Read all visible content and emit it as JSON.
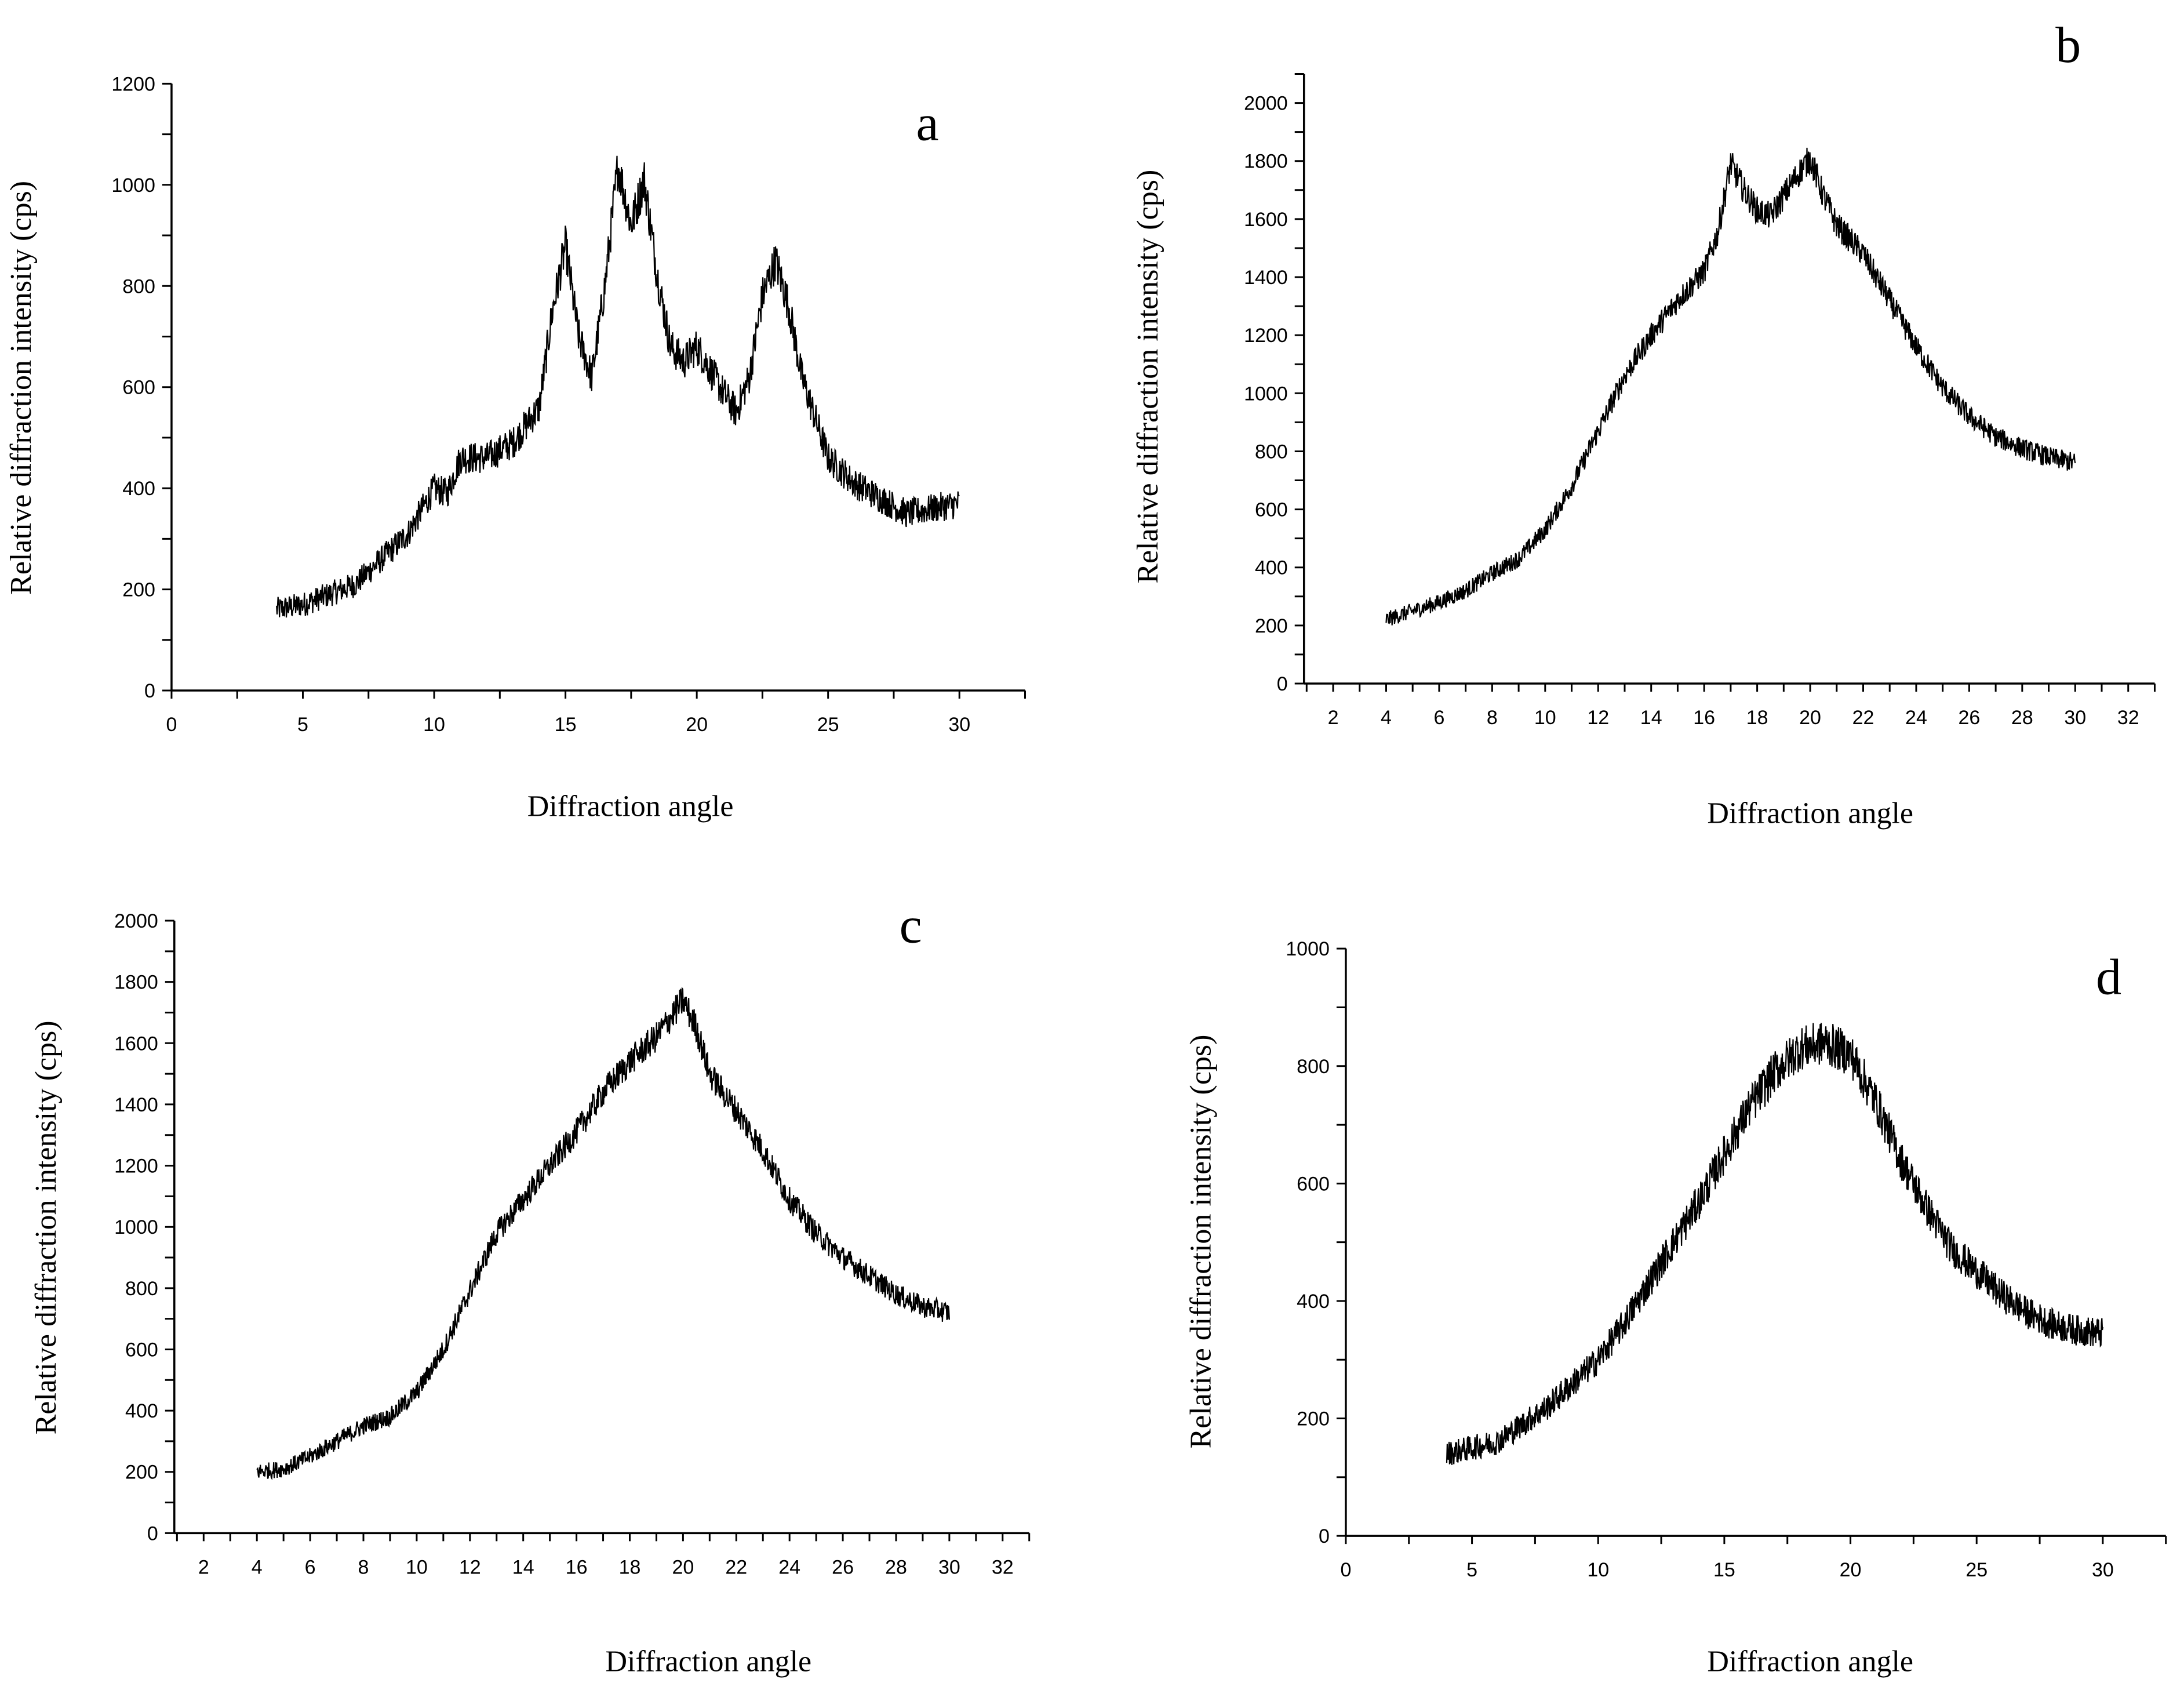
{
  "chart_data": [
    {
      "type": "line",
      "panel_label": "a",
      "xlabel": "Diffraction angle",
      "ylabel": "Relative diffraction intensity (cps)",
      "xlim": [
        0,
        32.5
      ],
      "ylim": [
        0,
        1200
      ],
      "xticks": [
        "0",
        "5",
        "10",
        "15",
        "20",
        "25",
        "30"
      ],
      "yticks": [
        "0",
        "200",
        "400",
        "600",
        "800",
        "1000",
        "1200"
      ],
      "series": [
        {
          "name": "a",
          "noise": 35,
          "x": [
            4,
            5,
            6,
            7,
            8,
            9,
            10,
            10.5,
            11,
            12,
            13,
            14,
            14.5,
            15,
            15.5,
            16,
            16.5,
            17,
            17.5,
            18,
            18.5,
            19,
            19.5,
            20,
            21,
            21.5,
            22,
            22.5,
            23,
            23.5,
            24,
            25,
            26,
            27,
            28,
            29,
            30
          ],
          "y": [
            160,
            170,
            190,
            210,
            260,
            310,
            400,
            390,
            460,
            460,
            490,
            560,
            750,
            880,
            700,
            620,
            800,
            1040,
            920,
            1010,
            820,
            680,
            650,
            680,
            590,
            550,
            620,
            780,
            850,
            760,
            620,
            460,
            410,
            380,
            350,
            360,
            370
          ]
        }
      ]
    },
    {
      "type": "line",
      "panel_label": "b",
      "xlabel": "Diffraction angle",
      "ylabel": "Relative diffraction intensity (cps)",
      "xlim": [
        0.9,
        33
      ],
      "ylim": [
        0,
        2100
      ],
      "xticks": [
        "2",
        "4",
        "6",
        "8",
        "10",
        "12",
        "14",
        "16",
        "18",
        "20",
        "22",
        "24",
        "26",
        "28",
        "30",
        "32"
      ],
      "yticks": [
        "0",
        "200",
        "400",
        "600",
        "800",
        "1000",
        "1200",
        "1400",
        "1600",
        "1800",
        "2000"
      ],
      "series": [
        {
          "name": "b",
          "noise": 40,
          "x": [
            4,
            5,
            6,
            7,
            8,
            9,
            10,
            11,
            12,
            13,
            14,
            15,
            16,
            16.5,
            17,
            17.5,
            18,
            18.5,
            19,
            19.5,
            20,
            20.5,
            21,
            22,
            23,
            24,
            25,
            26,
            27,
            28,
            29,
            30
          ],
          "y": [
            220,
            250,
            280,
            320,
            380,
            430,
            530,
            680,
            870,
            1060,
            1200,
            1320,
            1420,
            1550,
            1790,
            1700,
            1630,
            1610,
            1680,
            1750,
            1810,
            1680,
            1580,
            1480,
            1320,
            1160,
            1020,
            920,
            850,
            810,
            780,
            760
          ]
        }
      ]
    },
    {
      "type": "line",
      "panel_label": "c",
      "xlabel": "Diffraction angle",
      "ylabel": "Relative diffraction intensity (cps)",
      "xlim": [
        0.9,
        33
      ],
      "ylim": [
        0,
        2000
      ],
      "xticks": [
        "2",
        "4",
        "6",
        "8",
        "10",
        "12",
        "14",
        "16",
        "18",
        "20",
        "22",
        "24",
        "26",
        "28",
        "30",
        "32"
      ],
      "yticks": [
        "0",
        "200",
        "400",
        "600",
        "800",
        "1000",
        "1200",
        "1400",
        "1600",
        "1800",
        "2000"
      ],
      "series": [
        {
          "name": "c",
          "noise": 40,
          "x": [
            4,
            5,
            6,
            7,
            8,
            9,
            10,
            11,
            12,
            13,
            14,
            15,
            16,
            17,
            18,
            19,
            20,
            20.5,
            21,
            22,
            23,
            24,
            25,
            26,
            27,
            28,
            29,
            30
          ],
          "y": [
            200,
            210,
            250,
            300,
            350,
            380,
            460,
            600,
            790,
            980,
            1090,
            1200,
            1310,
            1440,
            1540,
            1620,
            1740,
            1650,
            1500,
            1380,
            1250,
            1090,
            980,
            900,
            840,
            780,
            740,
            720
          ]
        }
      ]
    },
    {
      "type": "line",
      "panel_label": "d",
      "xlabel": "Diffraction angle",
      "ylabel": "Relative diffraction intensity (cps)",
      "xlim": [
        0,
        32.5
      ],
      "ylim": [
        0,
        1000
      ],
      "xticks": [
        "0",
        "5",
        "10",
        "15",
        "20",
        "25",
        "30"
      ],
      "yticks": [
        "0",
        "200",
        "400",
        "600",
        "800",
        "1000"
      ],
      "series": [
        {
          "name": "d",
          "noise": 30,
          "x": [
            4,
            5,
            6,
            7,
            8,
            9,
            10,
            11,
            12,
            13,
            14,
            15,
            16,
            17,
            18,
            19,
            20,
            21,
            22,
            23,
            24,
            25,
            26,
            27,
            28,
            29,
            30
          ],
          "y": [
            140,
            150,
            160,
            190,
            220,
            260,
            300,
            360,
            430,
            500,
            570,
            650,
            730,
            790,
            830,
            840,
            820,
            740,
            640,
            560,
            490,
            450,
            410,
            380,
            360,
            350,
            345
          ]
        }
      ]
    }
  ]
}
